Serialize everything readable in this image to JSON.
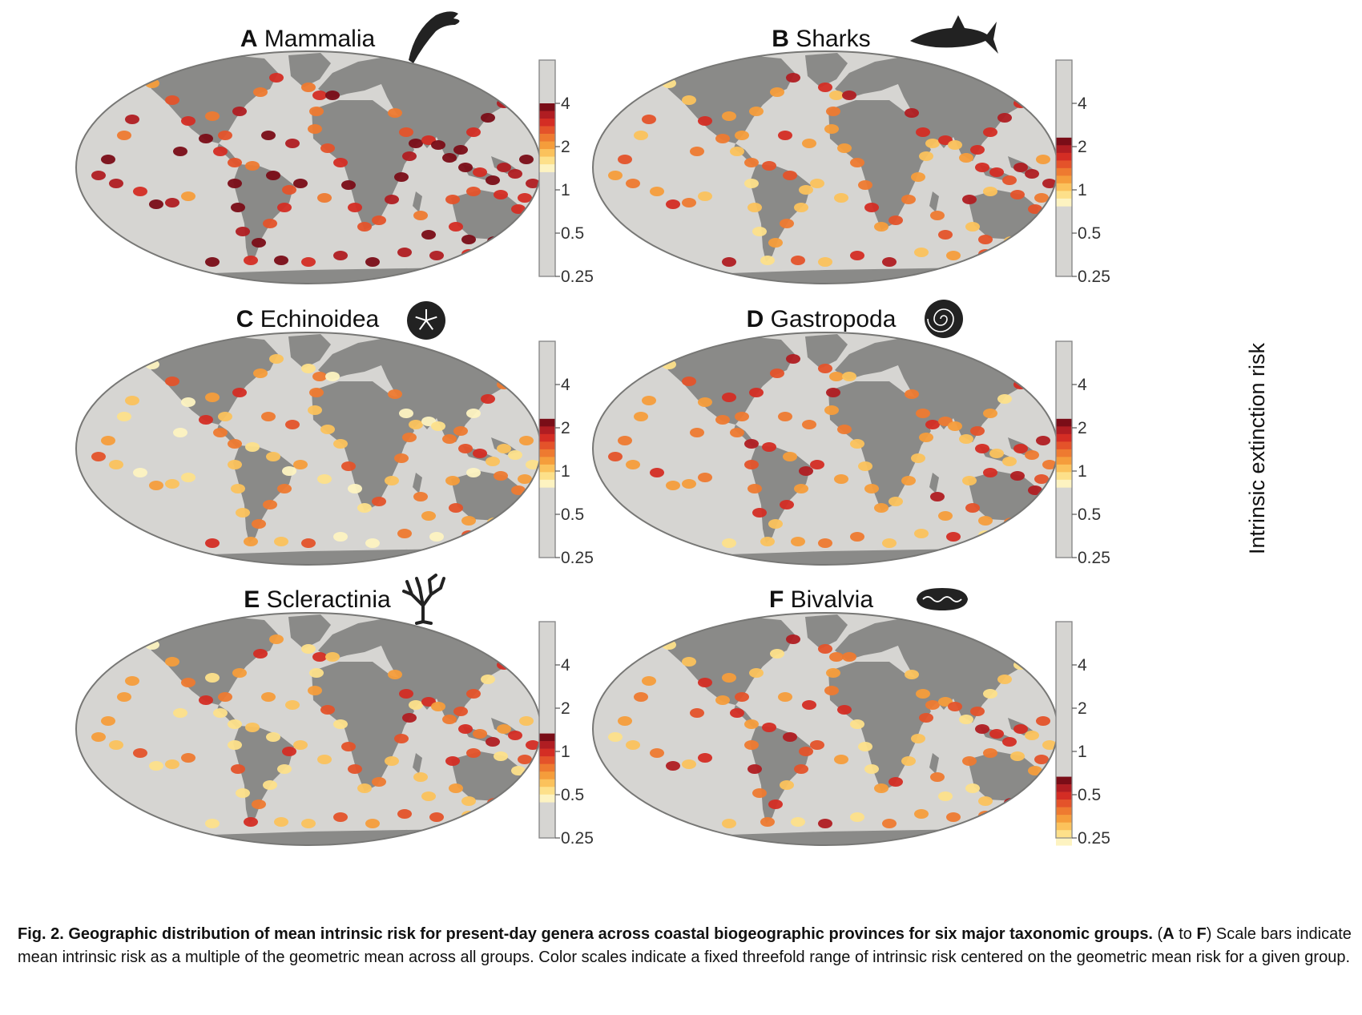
{
  "figure": {
    "side_label": "Intrinsic extinction risk",
    "tick_labels": [
      "4",
      "2",
      "1",
      "0.5",
      "0.25"
    ],
    "colors": {
      "ocean": "#d6d5d2",
      "land": "#8a8a88",
      "outline": "#777775",
      "scale": [
        "#fdf3c1",
        "#fde08a",
        "#fbc25c",
        "#f59d3b",
        "#ee7a30",
        "#e4532a",
        "#d42d24",
        "#b01d22",
        "#7a0d17"
      ]
    },
    "panels": [
      {
        "letter": "A",
        "name": "Mammalia",
        "icon": "dolphin-icon",
        "scale_top": 4,
        "scale_bottom": 1.333
      },
      {
        "letter": "B",
        "name": "Sharks",
        "icon": "shark-icon",
        "scale_top": 2.309,
        "scale_bottom": 0.77
      },
      {
        "letter": "C",
        "name": "Echinoidea",
        "icon": "sand-dollar-icon",
        "scale_top": 2.309,
        "scale_bottom": 0.77
      },
      {
        "letter": "D",
        "name": "Gastropoda",
        "icon": "nautilus-shell-icon",
        "scale_top": 2.309,
        "scale_bottom": 0.77
      },
      {
        "letter": "E",
        "name": "Scleractinia",
        "icon": "coral-icon",
        "scale_top": 1.333,
        "scale_bottom": 0.444
      },
      {
        "letter": "F",
        "name": "Bivalvia",
        "icon": "clam-icon",
        "scale_top": 0.667,
        "scale_bottom": 0.222
      }
    ]
  },
  "caption": {
    "bold": "Fig. 2. Geographic distribution of mean intrinsic risk for present-day genera across coastal biogeographic provinces for six major taxonomic groups.",
    "paren_open": " (",
    "from": "A",
    "to_word": " to ",
    "to": "F",
    "rest": ") Scale bars indicate mean intrinsic risk as a multiple of the geometric mean across all groups. Color scales indicate a fixed threefold range of intrinsic risk centered on the geometric mean risk for a given group."
  }
}
